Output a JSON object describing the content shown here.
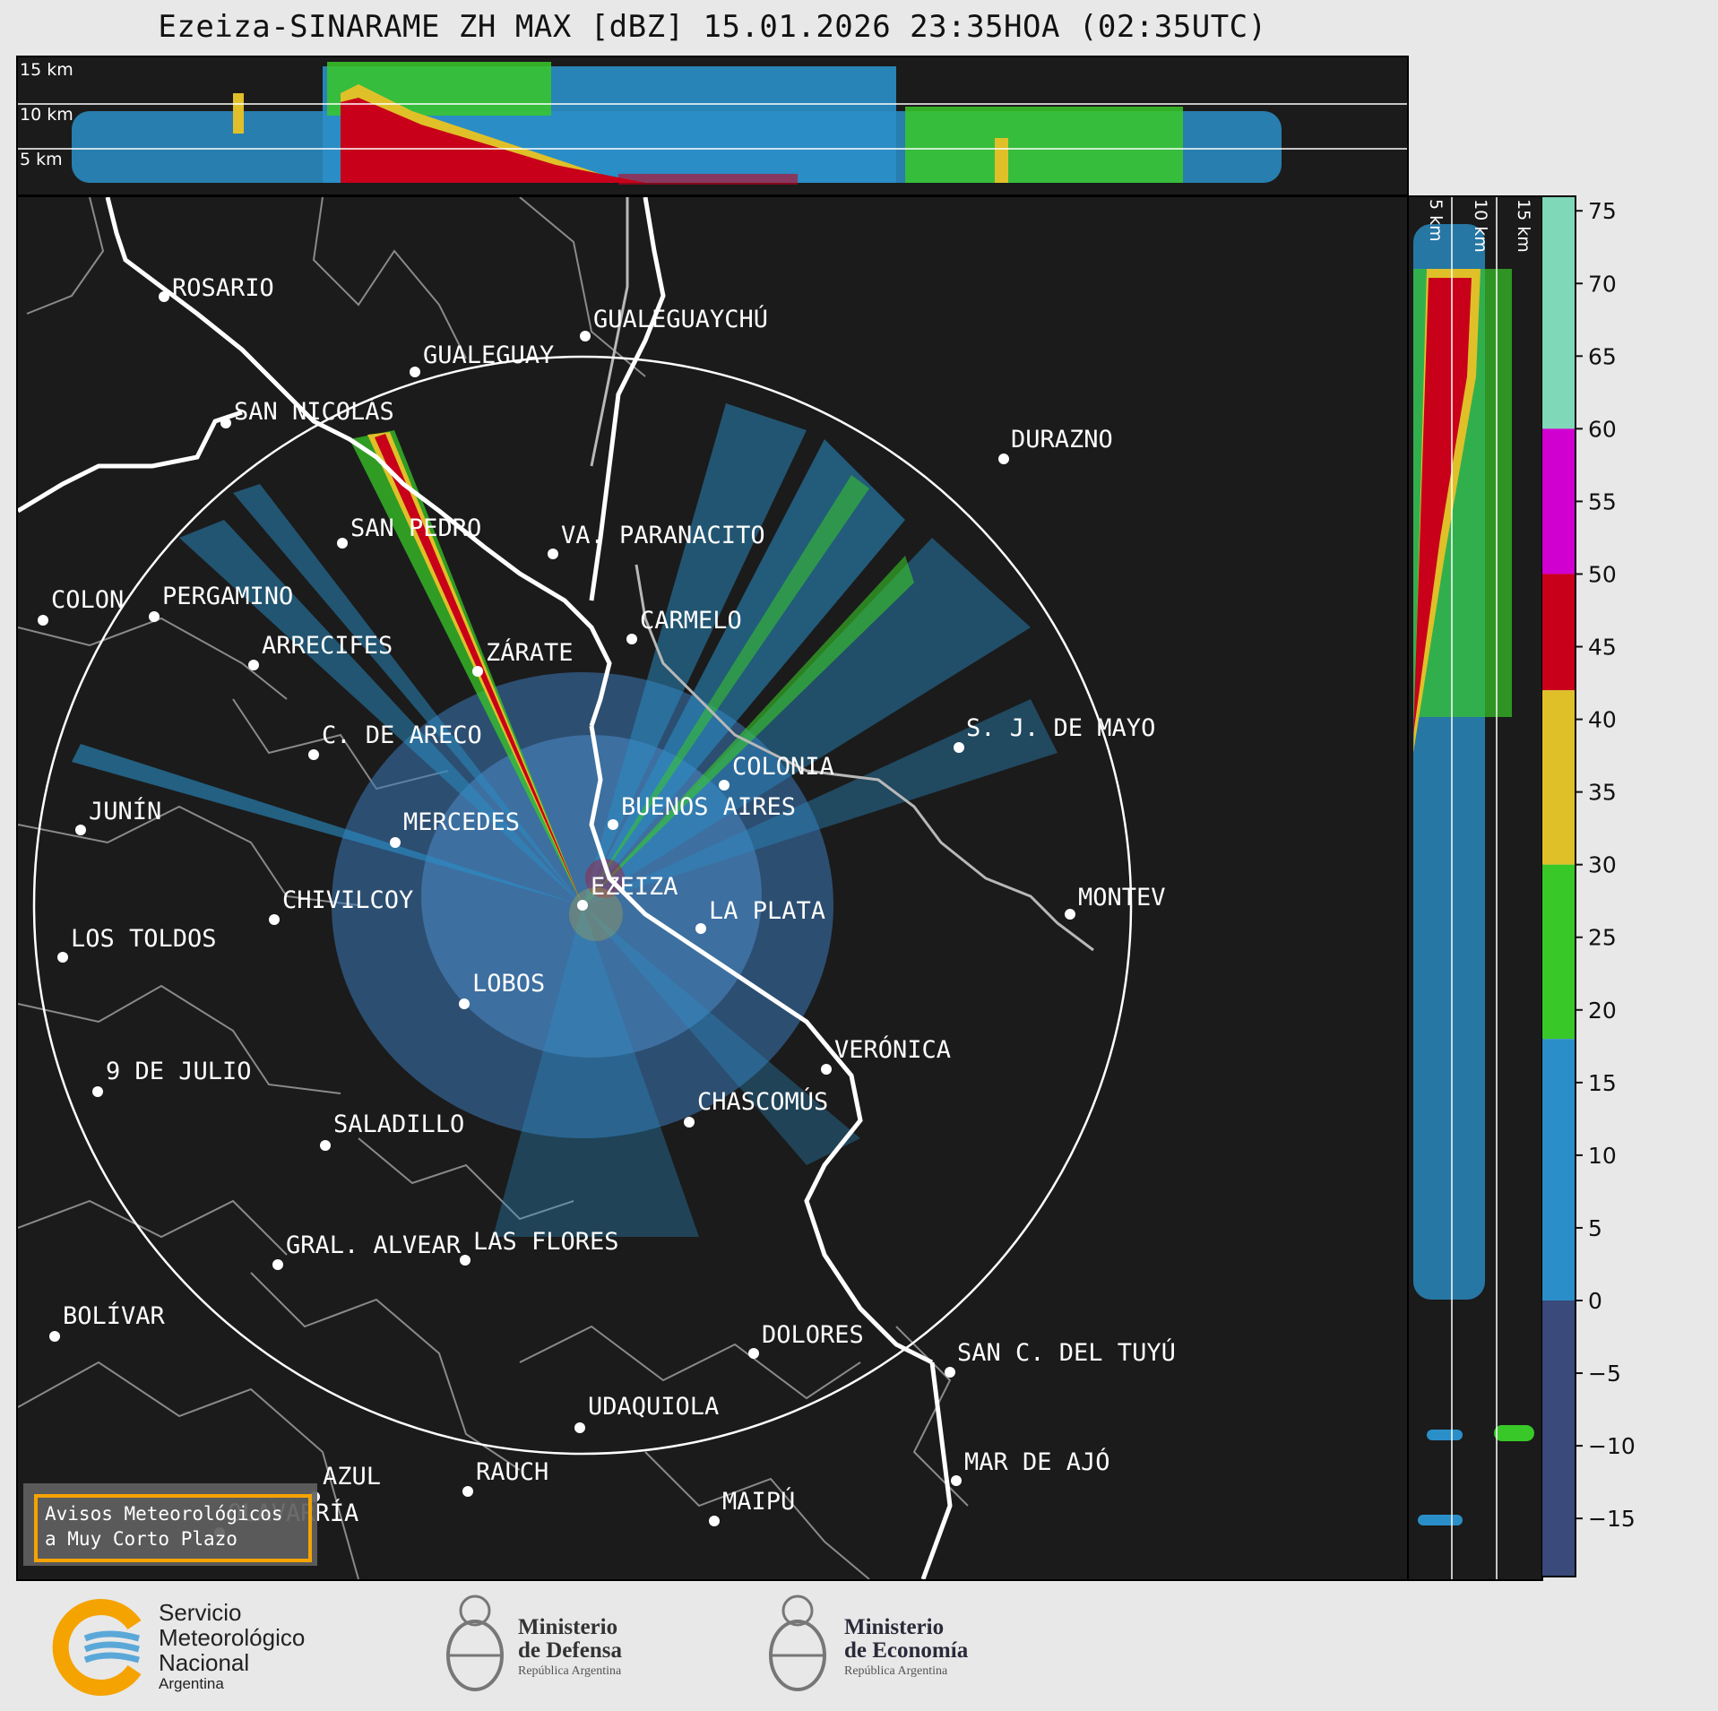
{
  "title": "Ezeiza-SINARAME ZH MAX [dBZ] 15.01.2026 23:35HOA (02:35UTC)",
  "height_labels_top": [
    "15 km",
    "10 km",
    "5 km"
  ],
  "height_labels_side": [
    "5 km",
    "10 km",
    "15 km"
  ],
  "colorbar": {
    "unit": "dBZ",
    "ticks": [
      "75",
      "70",
      "65",
      "60",
      "55",
      "50",
      "45",
      "40",
      "35",
      "30",
      "25",
      "20",
      "15",
      "10",
      "5",
      "0",
      "−5",
      "−10",
      "−15"
    ],
    "bands": [
      {
        "from": 60,
        "to": 76,
        "color": "#7fd8b8"
      },
      {
        "from": 50,
        "to": 60,
        "color": "#d000d0"
      },
      {
        "from": 42,
        "to": 50,
        "color": "#c8001a"
      },
      {
        "from": 30,
        "to": 42,
        "color": "#e0c028"
      },
      {
        "from": 18,
        "to": 30,
        "color": "#38c828"
      },
      {
        "from": 0,
        "to": 18,
        "color": "#2a8fc8"
      },
      {
        "from": -19,
        "to": 0,
        "color": "#3a4a7a"
      }
    ]
  },
  "cities": [
    {
      "name": "ROSARIO"
    },
    {
      "name": "GUALEGUAYCHÚ"
    },
    {
      "name": "GUALEGUAY"
    },
    {
      "name": "SAN NICOLÁS"
    },
    {
      "name": "DURAZNO"
    },
    {
      "name": "SAN PEDRO"
    },
    {
      "name": "VA. PARANACITO"
    },
    {
      "name": "COLON"
    },
    {
      "name": "PERGAMINO"
    },
    {
      "name": "CARMELO"
    },
    {
      "name": "ARRECIFES"
    },
    {
      "name": "ZÁRATE"
    },
    {
      "name": "S. J. DE MAYO"
    },
    {
      "name": "C. DE ARECO"
    },
    {
      "name": "COLONIA"
    },
    {
      "name": "JUNÍN"
    },
    {
      "name": "BUENOS AIRES"
    },
    {
      "name": "MERCEDES"
    },
    {
      "name": "EZEIZA"
    },
    {
      "name": "MONTEV"
    },
    {
      "name": "CHIVILCOY"
    },
    {
      "name": "LA PLATA"
    },
    {
      "name": "LOS TOLDOS"
    },
    {
      "name": "LOBOS"
    },
    {
      "name": "VERÓNICA"
    },
    {
      "name": "9 DE JULIO"
    },
    {
      "name": "CHASCOMÚS"
    },
    {
      "name": "SALADILLO"
    },
    {
      "name": "GRAL. ALVEAR"
    },
    {
      "name": "LAS FLORES"
    },
    {
      "name": "BOLÍVAR"
    },
    {
      "name": "DOLORES"
    },
    {
      "name": "SAN C. DEL TUYÚ"
    },
    {
      "name": "UDAQUIOLA"
    },
    {
      "name": "MAR DE AJÓ"
    },
    {
      "name": "AZUL"
    },
    {
      "name": "RAUCH"
    },
    {
      "name": "OLAVARRÍA"
    },
    {
      "name": "MAIPÚ"
    }
  ],
  "warning": {
    "line1": "Avisos Meteorológicos",
    "line2": "a Muy Corto Plazo"
  },
  "logos": {
    "smn": {
      "line1": "Servicio",
      "line2": "Meteorológico",
      "line3": "Nacional",
      "line4": "Argentina"
    },
    "defensa": {
      "line1": "Ministerio",
      "line2": "de Defensa",
      "line3": "República Argentina"
    },
    "economia": {
      "line1": "Ministerio",
      "line2": "de Economía",
      "line3": "República Argentina"
    }
  },
  "colors": {
    "background": "#1b1b1b",
    "coast": "#ffffff",
    "borders": "#8a8a8a",
    "accent": "#f5a300"
  }
}
